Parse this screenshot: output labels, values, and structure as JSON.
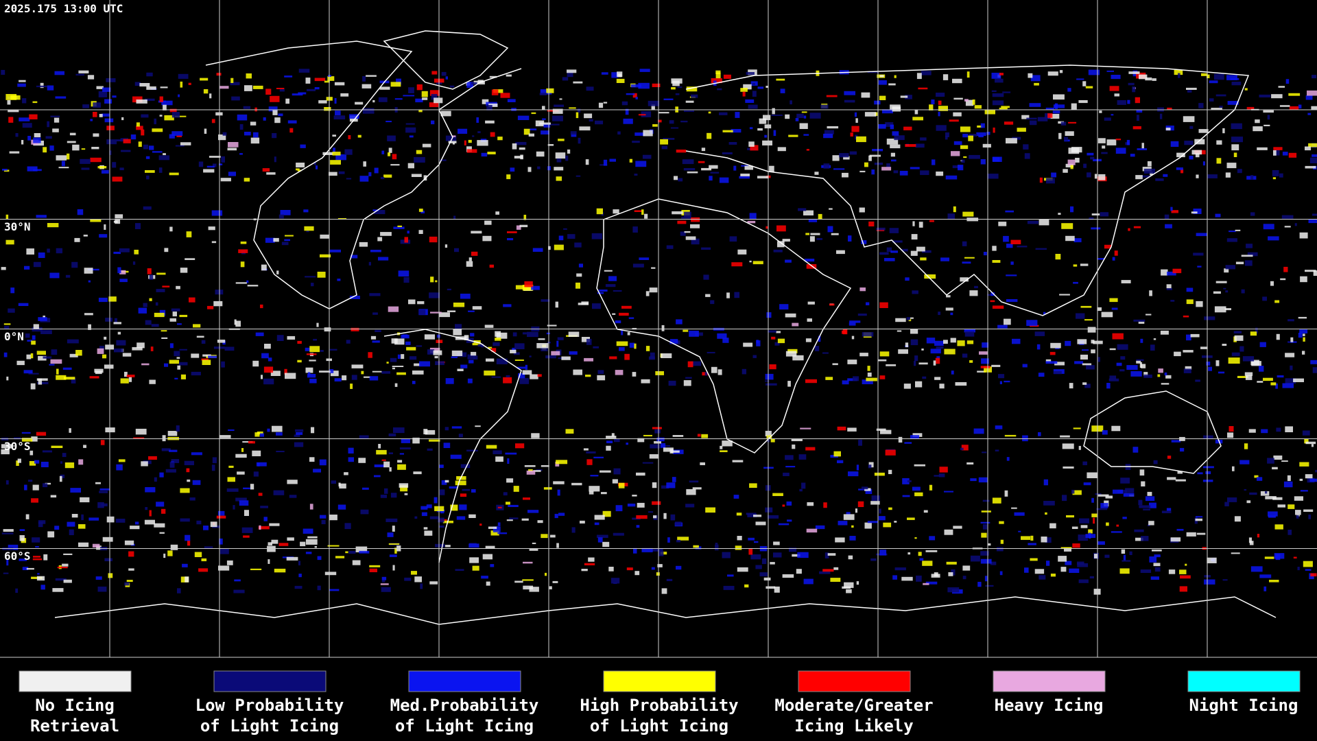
{
  "header": {
    "timestamp": "2025.175 13:00 UTC"
  },
  "map": {
    "latitude_labels": [
      "30°N",
      "0°N",
      "30°S",
      "60°S"
    ]
  },
  "legend": [
    {
      "lines": [
        "No Icing",
        "Retrieval"
      ],
      "color": "#f0f0f0"
    },
    {
      "lines": [
        "Low Probability",
        "of Light Icing"
      ],
      "color": "#0a0a78"
    },
    {
      "lines": [
        "Med.Probability",
        "of Light Icing"
      ],
      "color": "#0a14f0"
    },
    {
      "lines": [
        "High Probability",
        "of Light Icing"
      ],
      "color": "#ffff00"
    },
    {
      "lines": [
        "Moderate/Greater",
        "Icing Likely"
      ],
      "color": "#ff0000"
    },
    {
      "lines": [
        "Heavy Icing"
      ],
      "color": "#e8a8e0"
    },
    {
      "lines": [
        "Night Icing"
      ],
      "color": "#00ffff"
    }
  ]
}
